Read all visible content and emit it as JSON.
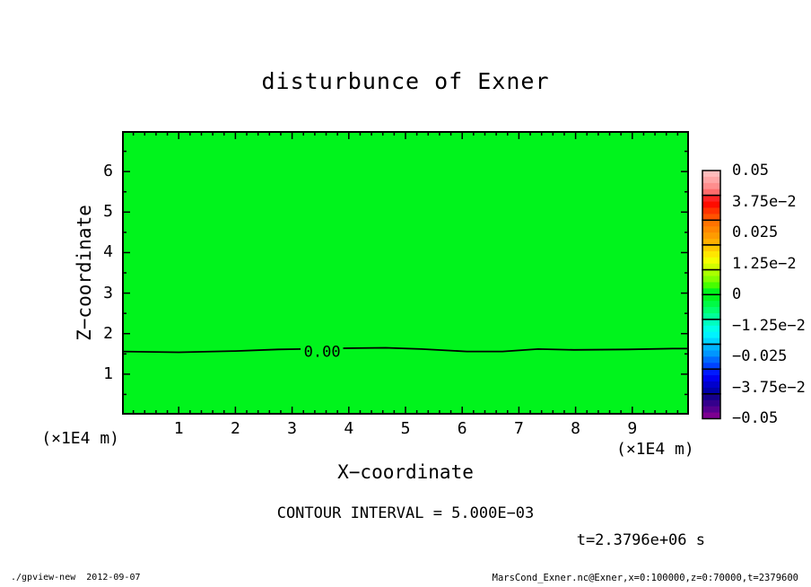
{
  "title": "disturbunce of Exner",
  "y_axis": {
    "label": "Z−coordinate",
    "unit": "(×1E4 m)",
    "tick_labels": [
      "1",
      "2",
      "3",
      "4",
      "5",
      "6"
    ],
    "tick_values": [
      1,
      2,
      3,
      4,
      5,
      6
    ]
  },
  "x_axis": {
    "label": "X−coordinate",
    "unit": "(×1E4 m)",
    "tick_labels": [
      "1",
      "2",
      "3",
      "4",
      "5",
      "6",
      "7",
      "8",
      "9"
    ],
    "tick_values": [
      1,
      2,
      3,
      4,
      5,
      6,
      7,
      8,
      9
    ]
  },
  "contour_inline_label": "0.00",
  "captions": {
    "contour_interval": "CONTOUR INTERVAL = 5.000E−03",
    "time": "t=2.3796e+06 s"
  },
  "footer": {
    "left": "./gpview-new  2012-09-07",
    "right": "MarsCond_Exner.nc@Exner,x=0:100000,z=0:70000,t=2379600"
  },
  "colors": {
    "plot_fill": "#00f41c",
    "line": "#000000",
    "background": "#ffffff"
  },
  "colorbar": {
    "tick_labels": [
      "0.05",
      "3.75e−2",
      "0.025",
      "1.25e−2",
      "0",
      "−1.25e−2",
      "−0.025",
      "−3.75e−2",
      "−0.05"
    ],
    "boxes": [
      [
        "#ffbcbc",
        "#ffa6a6",
        "#ff8e8e",
        "#ff6c6c"
      ],
      [
        "#ff2424",
        "#ff0c00",
        "#ff3200",
        "#ff5200"
      ],
      [
        "#ff7300",
        "#ff8700",
        "#ff9b00",
        "#ffaf00"
      ],
      [
        "#ffc800",
        "#ffe600",
        "#f4ff00",
        "#d2ff00"
      ],
      [
        "#aaff00",
        "#82ff00",
        "#46ff00",
        "#00f41c"
      ],
      [
        "#00f41c",
        "#00fa46",
        "#00ff6e",
        "#00ff98"
      ],
      [
        "#00ffc0",
        "#00ffe8",
        "#00f2ff",
        "#00d4ff"
      ],
      [
        "#00b4ff",
        "#0096ff",
        "#006aff",
        "#0042ff"
      ],
      [
        "#001aff",
        "#0000f0",
        "#0000cc",
        "#0000aa"
      ],
      [
        "#16008c",
        "#34008c",
        "#56008f",
        "#7d0091"
      ]
    ]
  },
  "chart_data": {
    "type": "heatmap",
    "subtype": "filled-contour",
    "title": "disturbunce of Exner",
    "xlabel": "X−coordinate",
    "ylabel": "Z−coordinate",
    "x_unit": "×1E4 m",
    "y_unit": "×1E4 m",
    "xlim": [
      0,
      10
    ],
    "ylim": [
      0,
      7
    ],
    "x_major_ticks": [
      1,
      2,
      3,
      4,
      5,
      6,
      7,
      8,
      9
    ],
    "x_minor_step": 0.2,
    "y_major_ticks": [
      1,
      2,
      3,
      4,
      5,
      6
    ],
    "y_minor_step": 0.5,
    "contour_interval": 0.005,
    "colorbar_levels": [
      0.05,
      0.0375,
      0.025,
      0.0125,
      0,
      -0.0125,
      -0.025,
      -0.0375,
      -0.05
    ],
    "field_summary": "Exner disturbance nearly zero everywhere; single 0.00 contour crosses the domain at z ≈ 1.6 (×1E4 m)",
    "time": "t=2.3796e+06 s",
    "zero_contour": {
      "x": [
        0,
        1.0,
        2.0,
        2.75,
        3.15,
        3.9,
        4.65,
        5.28,
        6.08,
        6.71,
        7.34,
        7.97,
        8.92,
        9.71,
        10
      ],
      "z": [
        1.56,
        1.54,
        1.57,
        1.61,
        1.62,
        1.64,
        1.65,
        1.62,
        1.56,
        1.56,
        1.62,
        1.6,
        1.61,
        1.63,
        1.63
      ],
      "label": "0.00",
      "label_gap_x": [
        3.15,
        3.9
      ],
      "label_pos": {
        "x": 3.53,
        "z": 1.56
      }
    },
    "legend_position": "right-colorbar",
    "grid": false
  }
}
